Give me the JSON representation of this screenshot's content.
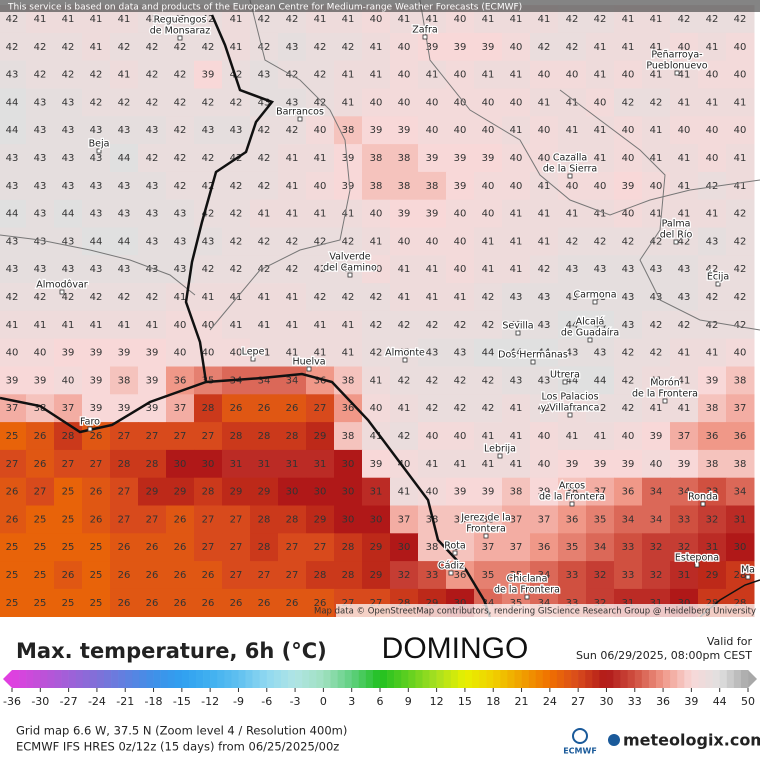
{
  "map": {
    "attribution_top": "This service is based on data and products of the European Centre for Medium-range Weather Forecasts (ECMWF)",
    "attribution_bottom": "Map data © OpenStreetMap contributors, rendering GIScience Research Group @ Heidelberg University",
    "grid": {
      "rows": [
        [
          42,
          41,
          41,
          41,
          41,
          42,
          42,
          42,
          41,
          42,
          42,
          41,
          41,
          40,
          41,
          41,
          40,
          41,
          41,
          41,
          42,
          42,
          41,
          41,
          42,
          42,
          42
        ],
        [
          42,
          42,
          42,
          41,
          42,
          42,
          42,
          42,
          41,
          42,
          43,
          42,
          42,
          41,
          40,
          39,
          39,
          39,
          40,
          42,
          42,
          41,
          41,
          41,
          40,
          41,
          40
        ],
        [
          43,
          42,
          42,
          42,
          41,
          42,
          42,
          39,
          42,
          43,
          42,
          42,
          41,
          41,
          40,
          41,
          40,
          41,
          41,
          40,
          40,
          41,
          40,
          41,
          41,
          40,
          40
        ],
        [
          44,
          43,
          43,
          42,
          42,
          42,
          42,
          42,
          42,
          43,
          43,
          42,
          41,
          40,
          40,
          40,
          40,
          40,
          40,
          41,
          41,
          40,
          42,
          42,
          41,
          41,
          41
        ],
        [
          44,
          43,
          43,
          43,
          43,
          43,
          42,
          43,
          43,
          42,
          42,
          40,
          38,
          39,
          39,
          40,
          40,
          40,
          41,
          40,
          41,
          41,
          40,
          41,
          40,
          40,
          40
        ],
        [
          43,
          43,
          43,
          43,
          44,
          42,
          42,
          42,
          42,
          42,
          41,
          41,
          39,
          38,
          38,
          39,
          39,
          39,
          40,
          40,
          41,
          41,
          40,
          41,
          41,
          40,
          41
        ],
        [
          43,
          43,
          43,
          43,
          43,
          43,
          42,
          42,
          42,
          42,
          41,
          40,
          39,
          38,
          38,
          38,
          39,
          40,
          40,
          41,
          40,
          40,
          39,
          40,
          41,
          42,
          41
        ],
        [
          44,
          43,
          44,
          43,
          43,
          43,
          43,
          42,
          42,
          41,
          41,
          41,
          41,
          40,
          39,
          39,
          40,
          40,
          41,
          41,
          41,
          41,
          40,
          41,
          41,
          41,
          42
        ],
        [
          43,
          43,
          43,
          44,
          44,
          43,
          43,
          43,
          42,
          42,
          42,
          42,
          42,
          41,
          40,
          40,
          40,
          41,
          41,
          41,
          42,
          42,
          42,
          42,
          42,
          43,
          42
        ],
        [
          43,
          43,
          43,
          43,
          43,
          43,
          43,
          42,
          42,
          42,
          42,
          42,
          42,
          40,
          41,
          41,
          40,
          41,
          41,
          42,
          43,
          43,
          43,
          43,
          43,
          42,
          42
        ],
        [
          42,
          42,
          42,
          42,
          42,
          42,
          41,
          41,
          41,
          41,
          41,
          42,
          42,
          42,
          41,
          41,
          41,
          42,
          43,
          43,
          43,
          43,
          43,
          43,
          43,
          42,
          42
        ],
        [
          41,
          41,
          41,
          41,
          41,
          41,
          40,
          40,
          41,
          41,
          41,
          41,
          41,
          42,
          42,
          42,
          42,
          42,
          43,
          43,
          44,
          44,
          43,
          42,
          42,
          42,
          42
        ],
        [
          40,
          40,
          39,
          39,
          39,
          39,
          40,
          40,
          40,
          41,
          41,
          41,
          41,
          42,
          42,
          43,
          43,
          44,
          44,
          44,
          43,
          43,
          42,
          42,
          41,
          41,
          40
        ],
        [
          39,
          39,
          40,
          39,
          38,
          39,
          36,
          35,
          34,
          34,
          34,
          36,
          38,
          41,
          42,
          42,
          42,
          42,
          43,
          43,
          44,
          44,
          42,
          41,
          41,
          39,
          38
        ],
        [
          37,
          38,
          37,
          39,
          39,
          39,
          37,
          28,
          26,
          26,
          26,
          27,
          36,
          40,
          41,
          42,
          42,
          42,
          41,
          42,
          41,
          42,
          42,
          41,
          41,
          38,
          37
        ],
        [
          25,
          26,
          28,
          26,
          27,
          27,
          27,
          27,
          28,
          28,
          28,
          29,
          38,
          41,
          42,
          40,
          40,
          41,
          41,
          40,
          41,
          41,
          40,
          39,
          37,
          36,
          36
        ],
        [
          27,
          26,
          27,
          27,
          28,
          28,
          30,
          30,
          31,
          31,
          31,
          31,
          30,
          39,
          40,
          41,
          41,
          41,
          41,
          40,
          39,
          39,
          39,
          40,
          39,
          38,
          38
        ],
        [
          26,
          27,
          25,
          26,
          27,
          29,
          29,
          28,
          29,
          29,
          30,
          30,
          30,
          31,
          41,
          40,
          39,
          39,
          38,
          39,
          38,
          37,
          36,
          34,
          34,
          33,
          34
        ],
        [
          26,
          25,
          25,
          26,
          27,
          27,
          26,
          27,
          27,
          28,
          28,
          29,
          30,
          30,
          37,
          38,
          38,
          38,
          37,
          37,
          36,
          35,
          34,
          34,
          33,
          32,
          31
        ],
        [
          25,
          25,
          25,
          25,
          26,
          26,
          26,
          27,
          27,
          28,
          27,
          27,
          28,
          29,
          30,
          38,
          38,
          37,
          37,
          36,
          35,
          34,
          33,
          32,
          32,
          31,
          30
        ],
        [
          25,
          25,
          26,
          25,
          26,
          26,
          26,
          26,
          27,
          27,
          27,
          28,
          28,
          29,
          32,
          33,
          36,
          35,
          35,
          34,
          33,
          32,
          33,
          32,
          31,
          29,
          28
        ],
        [
          25,
          25,
          25,
          25,
          26,
          26,
          26,
          26,
          26,
          26,
          26,
          26,
          27,
          27,
          28,
          29,
          30,
          34,
          35,
          34,
          33,
          32,
          31,
          31,
          30,
          28,
          28
        ]
      ]
    },
    "places": [
      [
        "Reguengos",
        "de Monsaraz"
      ],
      [
        "Zafra"
      ],
      [
        "Peñarroya-",
        "Pueblonuevo"
      ],
      [
        "Barrancos"
      ],
      [
        "Beja"
      ],
      [
        "Cazalla",
        "de la Sierra"
      ],
      [
        "Palma",
        "del Río"
      ],
      [
        "Valverde",
        "del Camino"
      ],
      [
        "Almodôvar"
      ],
      [
        "Carmona"
      ],
      [
        "Écija"
      ],
      [
        "Sevilla"
      ],
      [
        "Alcalá",
        "de Guadaíra"
      ],
      [
        "Dos Hermanas"
      ],
      [
        "Lepe"
      ],
      [
        "Huelva"
      ],
      [
        "Almonte"
      ],
      [
        "Utrera"
      ],
      [
        "Los Palacios",
        "y Villafranca"
      ],
      [
        "Morón",
        "de la Frontera"
      ],
      [
        "Faro"
      ],
      [
        "Lebrija"
      ],
      [
        "Arcos",
        "de la Frontera"
      ],
      [
        "Ronda"
      ],
      [
        "Jerez de la",
        "Frontera"
      ],
      [
        "Rota"
      ],
      [
        "Cádiz"
      ],
      [
        "Chiclana",
        "de la Frontera"
      ],
      [
        "Estepona"
      ],
      [
        "Ma"
      ]
    ]
  },
  "footer": {
    "title": "Max. temperature, 6h (°C)",
    "day": "DOMINGO",
    "valid_label": "Valid for",
    "valid_time": "Sun 06/29/2025, 08:00pm CEST",
    "scale": {
      "ticks": [
        -36,
        -30,
        -27,
        -24,
        -21,
        -18,
        -15,
        -12,
        -9,
        -6,
        -3,
        0,
        3,
        6,
        9,
        12,
        15,
        18,
        21,
        24,
        27,
        30,
        33,
        36,
        39,
        44,
        50
      ],
      "colors": [
        "#e040e0",
        "#c050d8",
        "#a060d8",
        "#8070d8",
        "#6080e0",
        "#4090e8",
        "#30a0f0",
        "#40b0f0",
        "#60c0f0",
        "#90d8f0",
        "#b0e4e4",
        "#a0e0c0",
        "#60d080",
        "#20c020",
        "#60d020",
        "#a8e020",
        "#e8f000",
        "#f0d000",
        "#f0a000",
        "#f07000",
        "#d84a1c",
        "#b01818",
        "#d05040",
        "#f09888",
        "#f8d8d8",
        "#e0e0e0",
        "#a8a8a8"
      ]
    },
    "grid_info": "Grid map 6.6 W, 37.5 N (Zoom level 4 / Resolution 400m)",
    "model_info": "ECMWF IFS HRES 0z/12z (15 days) from 06/25/2025/00z",
    "ecmwf": "ECMWF",
    "brand": "meteologix.com"
  }
}
